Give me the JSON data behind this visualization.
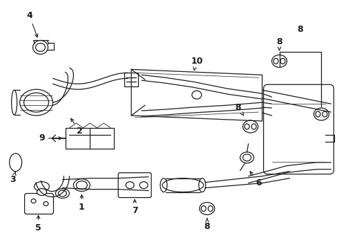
{
  "bg_color": "#ffffff",
  "line_color": "#1a1a1a",
  "fig_width": 4.89,
  "fig_height": 3.6,
  "dpi": 100,
  "label_fontsize": 9,
  "lw": 0.9
}
